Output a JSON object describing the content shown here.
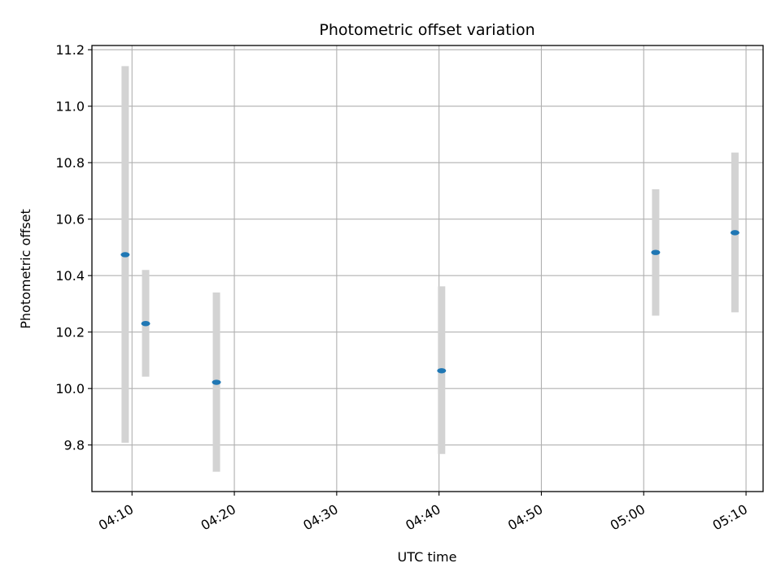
{
  "chart_data": {
    "type": "scatter",
    "title": "Photometric offset variation",
    "xlabel": "UTC time",
    "ylabel": "Photometric offset",
    "x_ticks": [
      "04:10",
      "04:20",
      "04:30",
      "04:40",
      "04:50",
      "05:00",
      "05:10"
    ],
    "y_ticks": [
      "9.8",
      "10.0",
      "10.2",
      "10.4",
      "10.6",
      "10.8",
      "11.0",
      "11.2"
    ],
    "xlim": [
      "04:06:05",
      "05:11:40"
    ],
    "ylim": [
      9.635,
      11.215
    ],
    "grid": true,
    "series": [
      {
        "marker_color": "#1f77b4",
        "errorbar_color": "#d3d3d3",
        "points": [
          {
            "x": "04:09:20",
            "y": 10.474,
            "yerr_low": 9.808,
            "yerr_high": 11.142
          },
          {
            "x": "04:11:20",
            "y": 10.23,
            "yerr_low": 10.042,
            "yerr_high": 10.42
          },
          {
            "x": "04:18:15",
            "y": 10.022,
            "yerr_low": 9.705,
            "yerr_high": 10.34
          },
          {
            "x": "04:40:15",
            "y": 10.063,
            "yerr_low": 9.768,
            "yerr_high": 10.362
          },
          {
            "x": "05:01:10",
            "y": 10.482,
            "yerr_low": 10.258,
            "yerr_high": 10.706
          },
          {
            "x": "05:08:55",
            "y": 10.552,
            "yerr_low": 10.27,
            "yerr_high": 10.836
          }
        ]
      }
    ]
  }
}
